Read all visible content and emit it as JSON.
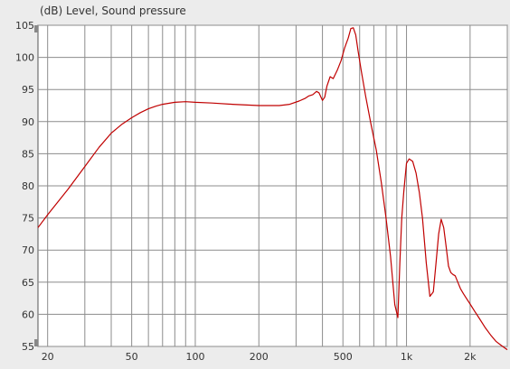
{
  "chart_data": {
    "type": "line",
    "title": "(dB)  Level, Sound pressure",
    "xlabel": "",
    "ylabel": "",
    "xscale": "log",
    "xlim": [
      18,
      3000
    ],
    "ylim": [
      55,
      105
    ],
    "grid": true,
    "yticks": [
      55,
      60,
      65,
      70,
      75,
      80,
      85,
      90,
      95,
      100,
      105
    ],
    "xtick_labels": [
      {
        "value": 20,
        "label": "20"
      },
      {
        "value": 50,
        "label": "50"
      },
      {
        "value": 100,
        "label": "100"
      },
      {
        "value": 200,
        "label": "200"
      },
      {
        "value": 500,
        "label": "500"
      },
      {
        "value": 1000,
        "label": "1k"
      },
      {
        "value": 2000,
        "label": "2k"
      }
    ],
    "grid_x": [
      20,
      30,
      40,
      50,
      60,
      70,
      80,
      90,
      100,
      200,
      300,
      400,
      500,
      600,
      700,
      800,
      900,
      1000,
      2000,
      3000
    ],
    "series": [
      {
        "color": "#c00000",
        "x": [
          18,
          20,
          25,
          30,
          35,
          40,
          45,
          50,
          55,
          60,
          65,
          70,
          80,
          90,
          100,
          120,
          150,
          200,
          250,
          280,
          310,
          330,
          345,
          360,
          375,
          385,
          400,
          410,
          420,
          435,
          450,
          470,
          490,
          510,
          530,
          545,
          560,
          575,
          590,
          610,
          640,
          680,
          720,
          760,
          800,
          840,
          880,
          910,
          930,
          950,
          970,
          1000,
          1030,
          1070,
          1110,
          1150,
          1190,
          1240,
          1290,
          1340,
          1380,
          1420,
          1460,
          1500,
          1540,
          1580,
          1620,
          1660,
          1700,
          1750,
          1800,
          1860,
          1920,
          2000,
          2100,
          2200,
          2350,
          2500,
          2650,
          2800,
          3000
        ],
        "y": [
          73.5,
          75.5,
          79.5,
          83,
          86,
          88.2,
          89.6,
          90.6,
          91.4,
          92.0,
          92.4,
          92.7,
          93.0,
          93.1,
          93.0,
          92.9,
          92.7,
          92.5,
          92.5,
          92.7,
          93.2,
          93.6,
          94.0,
          94.2,
          94.7,
          94.5,
          93.3,
          93.8,
          95.5,
          97.0,
          96.7,
          98.0,
          99.5,
          101.5,
          103.0,
          104.5,
          104.6,
          103.5,
          101.0,
          98.0,
          94.0,
          89.5,
          85.5,
          80.5,
          75.0,
          69.0,
          61.5,
          59.5,
          68.0,
          75.0,
          79.0,
          83.5,
          84.2,
          83.8,
          82.0,
          79.0,
          75.0,
          68.0,
          62.8,
          63.5,
          68.0,
          72.5,
          74.8,
          73.5,
          70.5,
          67.5,
          66.5,
          66.2,
          66.0,
          65.0,
          64.0,
          63.2,
          62.5,
          61.6,
          60.5,
          59.5,
          58.0,
          56.8,
          55.8,
          55.2,
          54.5
        ]
      }
    ]
  }
}
